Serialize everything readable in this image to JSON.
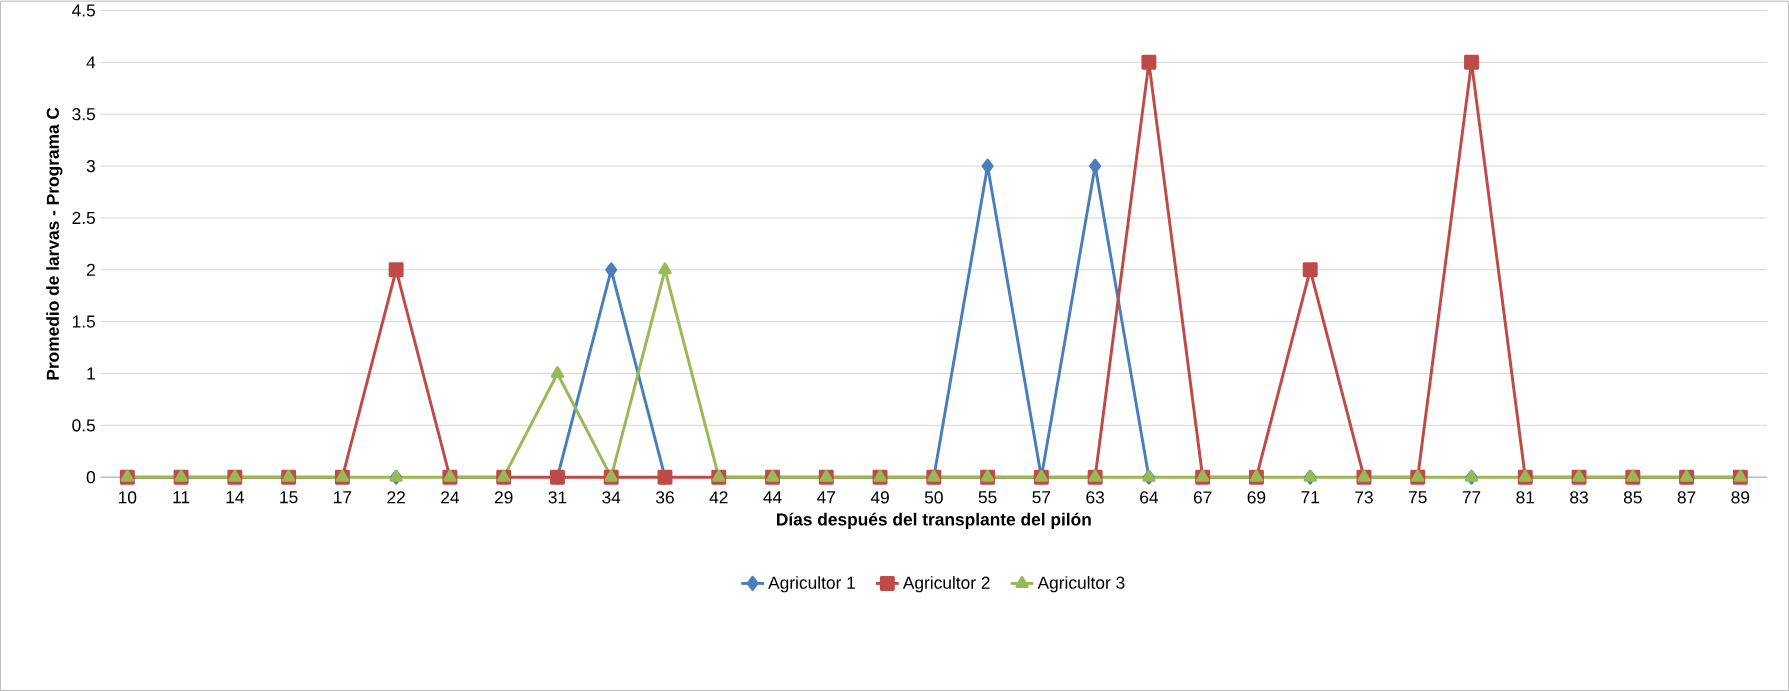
{
  "chart_data": {
    "type": "line",
    "xlabel": "Días después del transplante del pilón",
    "ylabel": "Promedio de larvas - Programa C",
    "categories": [
      "10",
      "11",
      "14",
      "15",
      "17",
      "22",
      "24",
      "29",
      "31",
      "34",
      "36",
      "42",
      "44",
      "47",
      "49",
      "50",
      "55",
      "57",
      "63",
      "64",
      "67",
      "69",
      "71",
      "73",
      "75",
      "77",
      "81",
      "83",
      "85",
      "87",
      "89"
    ],
    "series": [
      {
        "name": "Agricultor 1",
        "color": "#4a7ebb",
        "marker": "diamond",
        "values": [
          null,
          null,
          null,
          null,
          null,
          0,
          null,
          null,
          0,
          2,
          0,
          null,
          null,
          null,
          null,
          0,
          3,
          0,
          3,
          0,
          null,
          null,
          0,
          null,
          null,
          0,
          null,
          null,
          null,
          null,
          null
        ]
      },
      {
        "name": "Agricultor 2",
        "color": "#be4b48",
        "marker": "square",
        "values": [
          0,
          0,
          0,
          0,
          0,
          2,
          0,
          0,
          0,
          0,
          0,
          0,
          0,
          0,
          0,
          0,
          0,
          0,
          0,
          4,
          0,
          0,
          2,
          0,
          0,
          4,
          0,
          0,
          0,
          0,
          0
        ]
      },
      {
        "name": "Agricultor 3",
        "color": "#98b954",
        "marker": "triangle",
        "values": [
          0,
          0,
          0,
          0,
          0,
          0,
          0,
          0,
          1,
          0,
          2,
          0,
          0,
          0,
          0,
          0,
          0,
          0,
          0,
          0,
          0,
          0,
          0,
          0,
          0,
          0,
          0,
          0,
          0,
          0,
          0
        ]
      }
    ],
    "ylim": [
      0,
      4.5
    ],
    "yticks": [
      0,
      0.5,
      1,
      1.5,
      2,
      2.5,
      3,
      3.5,
      4,
      4.5
    ],
    "grid": "y",
    "legend": "bottom",
    "line_style": "solid"
  }
}
